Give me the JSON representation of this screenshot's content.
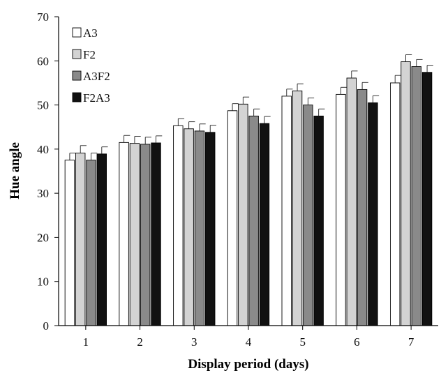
{
  "chart_data": {
    "type": "bar",
    "title": "",
    "xlabel": "Display period (days)",
    "ylabel": "Hue angle",
    "categories": [
      "1",
      "2",
      "3",
      "4",
      "5",
      "6",
      "7"
    ],
    "ylim": [
      0,
      70
    ],
    "yticks": [
      "0",
      "10",
      "20",
      "30",
      "40",
      "50",
      "60",
      "70"
    ],
    "legend_position": "top-left",
    "grid": false,
    "series": [
      {
        "name": "A3",
        "color": "#ffffff",
        "values": [
          37.5,
          41.5,
          45.3,
          48.7,
          52.0,
          52.4,
          55.0
        ],
        "errors": [
          1.6,
          1.6,
          1.6,
          1.6,
          1.6,
          1.6,
          1.7
        ]
      },
      {
        "name": "F2",
        "color": "#d3d3d3",
        "values": [
          39.1,
          41.3,
          44.6,
          50.2,
          53.2,
          56.1,
          59.8
        ],
        "errors": [
          1.7,
          1.6,
          1.6,
          1.6,
          1.6,
          1.6,
          1.6
        ]
      },
      {
        "name": "A3F2",
        "color": "#8a8a8a",
        "values": [
          37.5,
          41.1,
          44.1,
          47.5,
          50.0,
          53.5,
          58.7
        ],
        "errors": [
          1.6,
          1.6,
          1.6,
          1.6,
          1.6,
          1.6,
          1.6
        ]
      },
      {
        "name": "F2A3",
        "color": "#111111",
        "values": [
          38.9,
          41.4,
          43.8,
          45.8,
          47.5,
          50.5,
          57.4
        ],
        "errors": [
          1.6,
          1.6,
          1.6,
          1.6,
          1.6,
          1.6,
          1.6
        ]
      }
    ]
  }
}
